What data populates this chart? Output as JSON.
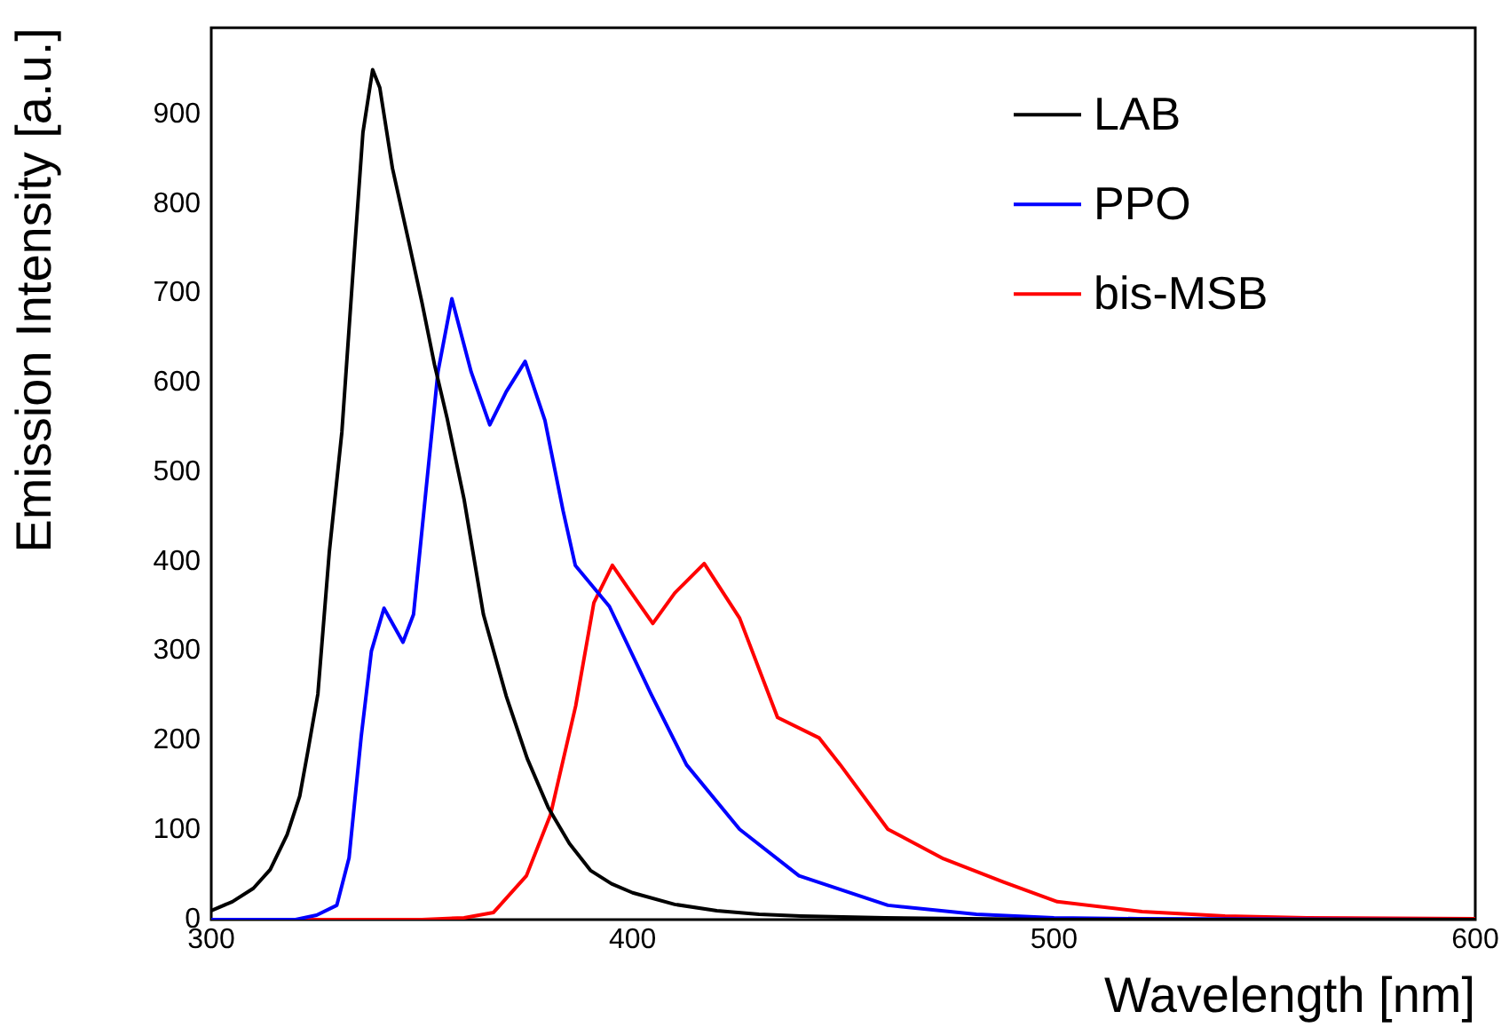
{
  "chart_data": {
    "type": "line",
    "xlabel": "Wavelength [nm]",
    "ylabel": "Emission Intensity [a.u.]",
    "xlim": [
      300,
      600
    ],
    "xticks": [
      300,
      400,
      500,
      600
    ],
    "ylim": [
      0,
      997
    ],
    "yticks": [
      0,
      100,
      200,
      300,
      400,
      500,
      600,
      700,
      800,
      900
    ],
    "legend": "top right",
    "marker": "none",
    "line_style": "solid",
    "grid": false,
    "series": [
      {
        "name": "LAB",
        "color": "#000000",
        "x": [
          300,
          305,
          310,
          314,
          318,
          321,
          323,
          325.3,
          328,
          331,
          334,
          336,
          338.3,
          340,
          343,
          347,
          350,
          353,
          356,
          360,
          364.6,
          370,
          375,
          380,
          385,
          390,
          395,
          400,
          410,
          420,
          430,
          440,
          460,
          480,
          500,
          600
        ],
        "values": [
          10,
          20,
          35,
          56,
          95,
          138,
          190,
          252,
          410,
          545,
          748,
          880,
          950,
          930,
          840,
          755,
          690,
          620,
          560,
          470,
          341,
          250,
          180,
          125,
          85,
          55,
          40,
          30,
          17,
          10,
          6,
          4,
          2,
          1,
          0,
          0
        ]
      },
      {
        "name": "PPO",
        "color": "#0000ff",
        "x": [
          300,
          320,
          325,
          329.8,
          332.7,
          335.6,
          338,
          341,
          345.5,
          348,
          350.9,
          353.8,
          357.1,
          361.7,
          366.1,
          370,
          374.5,
          379.2,
          383.5,
          386.4,
          394.5,
          404.4,
          412.8,
          425.4,
          439.5,
          460.6,
          481.6,
          500,
          520,
          600
        ],
        "values": [
          0,
          0,
          5,
          16,
          69,
          205,
          300,
          348,
          310,
          341,
          477,
          612,
          694,
          612,
          553,
          590,
          624,
          558,
          457,
          396,
          350,
          252,
          173,
          101,
          49,
          16,
          6,
          2,
          1,
          0
        ]
      },
      {
        "name": "bis-MSB",
        "color": "#ff0000",
        "x": [
          300,
          350,
          360,
          367,
          374.8,
          380.5,
          386.5,
          390.8,
          395.2,
          399,
          404.8,
          410,
          417,
          425.4,
          434.4,
          444.3,
          449.3,
          460.6,
          473.8,
          488,
          500.8,
          520.9,
          540.6,
          560,
          600
        ],
        "values": [
          0,
          0,
          2,
          8,
          49,
          117,
          239,
          354,
          396,
          370,
          331,
          365,
          398,
          337,
          226,
          203,
          173,
          101,
          68,
          42,
          20,
          9,
          4,
          2,
          1
        ]
      }
    ]
  }
}
